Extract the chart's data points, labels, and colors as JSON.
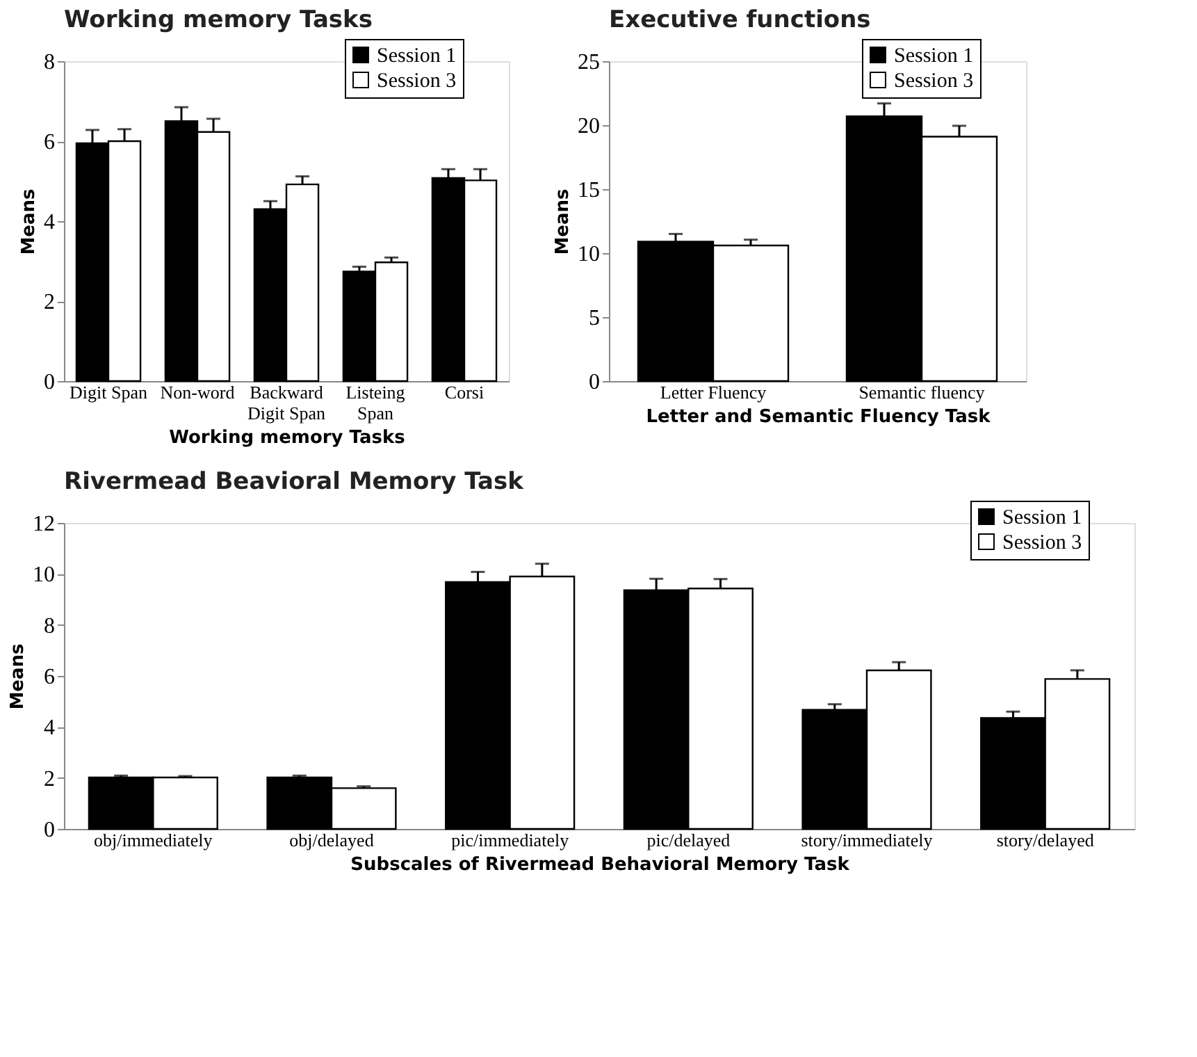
{
  "chart_data": [
    {
      "type": "bar",
      "title": "Working memory Tasks",
      "xlabel": "Working memory Tasks",
      "ylabel": "Means",
      "categories": [
        "Digit Span",
        "Non-word",
        "Backward\nDigit Span",
        "Listeing\nSpan",
        "Corsi"
      ],
      "series": [
        {
          "name": "Session 1",
          "color": "#000000",
          "values": [
            5.95,
            6.5,
            4.3,
            2.74,
            5.08
          ],
          "errors": [
            0.33,
            0.35,
            0.2,
            0.12,
            0.22
          ]
        },
        {
          "name": "Session 3",
          "color": "#ffffff",
          "values": [
            6.0,
            6.23,
            4.92,
            2.97,
            5.02
          ],
          "errors": [
            0.3,
            0.33,
            0.2,
            0.12,
            0.28
          ]
        }
      ],
      "ylim": [
        0,
        8
      ],
      "yticks": [
        0,
        2,
        4,
        6,
        8
      ],
      "grid": false,
      "legend": "top right"
    },
    {
      "type": "bar",
      "title": "Executive functions",
      "xlabel": "Letter and Semantic Fluency Task",
      "ylabel": "Means",
      "categories": [
        "Letter Fluency",
        "Semantic fluency"
      ],
      "series": [
        {
          "name": "Session 1",
          "color": "#000000",
          "values": [
            10.9,
            20.7
          ],
          "errors": [
            0.6,
            1.0
          ]
        },
        {
          "name": "Session 3",
          "color": "#ffffff",
          "values": [
            10.6,
            19.1
          ],
          "errors": [
            0.45,
            0.85
          ]
        }
      ],
      "ylim": [
        0,
        25
      ],
      "yticks": [
        0,
        5,
        10,
        15,
        20,
        25
      ],
      "grid": false,
      "legend": "top right"
    },
    {
      "type": "bar",
      "title": "Rivermead Beavioral Memory Task",
      "xlabel": "Subscales of Rivermead Behavioral Memory Task",
      "ylabel": "Means",
      "categories": [
        "obj/immediately",
        "obj/delayed",
        "pic/immediately",
        "pic/delayed",
        "story/immediately",
        "story/delayed"
      ],
      "series": [
        {
          "name": "Session 1",
          "color": "#000000",
          "values": [
            2.02,
            2.02,
            9.68,
            9.36,
            4.67,
            4.35
          ],
          "errors": [
            0.07,
            0.07,
            0.4,
            0.45,
            0.22,
            0.25
          ]
        },
        {
          "name": "Session 3",
          "color": "#ffffff",
          "values": [
            2.02,
            1.6,
            9.9,
            9.43,
            6.22,
            5.88
          ],
          "errors": [
            0.05,
            0.07,
            0.5,
            0.37,
            0.32,
            0.34
          ]
        }
      ],
      "ylim": [
        0,
        12
      ],
      "yticks": [
        0,
        2,
        4,
        6,
        8,
        10,
        12
      ],
      "grid": false,
      "legend": "top right"
    }
  ]
}
